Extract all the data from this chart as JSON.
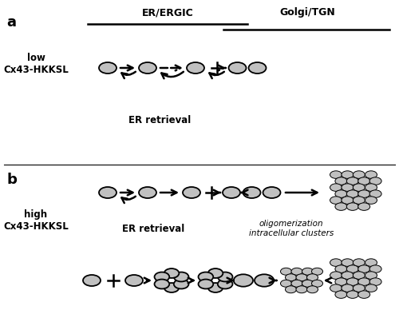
{
  "fig_width": 5.0,
  "fig_height": 4.13,
  "dpi": 100,
  "bg_color": "#ffffff",
  "ellipse_fill": "#c0c0c0",
  "ellipse_edge": "#000000",
  "ellipse_lw": 1.3,
  "panel_a_label": "a",
  "panel_b_label": "b",
  "er_ergic_label": "ER/ERGIC",
  "golgi_tgn_label": "Golgi/TGN",
  "low_label": "low\nCx43-HKKSL",
  "high_label": "high\nCx43-HKKSL",
  "er_retrieval_label_a": "ER retrieval",
  "er_retrieval_label_b": "ER retrieval",
  "oligo_label": "oligomerization\nintracellular clusters",
  "xlim": [
    0,
    5.0
  ],
  "ylim": [
    0,
    4.13
  ],
  "ew": 0.22,
  "eh": 0.14,
  "lw_arrow": 1.8,
  "mutation_scale": 12
}
